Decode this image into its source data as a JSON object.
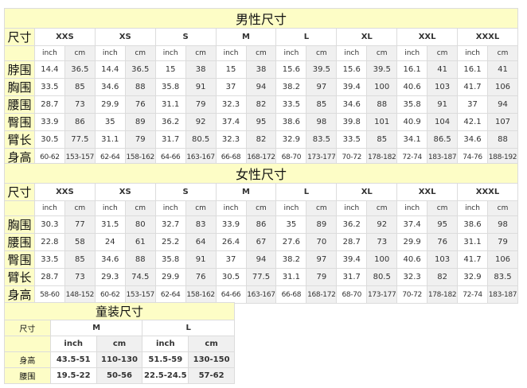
{
  "men": {
    "title": "男性尺寸",
    "size_label": "尺寸",
    "sizes": [
      "XXS",
      "XS",
      "S",
      "M",
      "L",
      "XL",
      "XXL",
      "XXXL"
    ],
    "units": [
      "inch",
      "cm"
    ],
    "rows": [
      {
        "label": "脖围",
        "values": [
          "14.4",
          "36.5",
          "14.4",
          "36.5",
          "15",
          "38",
          "15",
          "38",
          "15.6",
          "39.5",
          "15.6",
          "39.5",
          "16.1",
          "41",
          "16.1",
          "41"
        ]
      },
      {
        "label": "胸围",
        "values": [
          "33.5",
          "85",
          "34.6",
          "88",
          "35.8",
          "91",
          "37",
          "94",
          "38.2",
          "97",
          "39.4",
          "100",
          "40.6",
          "103",
          "41.7",
          "106"
        ]
      },
      {
        "label": "腰围",
        "values": [
          "28.7",
          "73",
          "29.9",
          "76",
          "31.1",
          "79",
          "32.3",
          "82",
          "33.5",
          "85",
          "34.6",
          "88",
          "35.8",
          "91",
          "37",
          "94"
        ]
      },
      {
        "label": "臀围",
        "values": [
          "33.9",
          "86",
          "35",
          "89",
          "36.2",
          "92",
          "37.4",
          "95",
          "38.6",
          "98",
          "39.8",
          "101",
          "40.9",
          "104",
          "42.1",
          "107"
        ]
      },
      {
        "label": "臂长",
        "values": [
          "30.5",
          "77.5",
          "31.1",
          "79",
          "31.7",
          "80.5",
          "32.3",
          "82",
          "32.9",
          "83.5",
          "33.5",
          "85",
          "34.1",
          "86.5",
          "34.6",
          "88"
        ]
      },
      {
        "label": "身高",
        "values": [
          "60-62",
          "153-157",
          "62-64",
          "158-162",
          "64-66",
          "163-167",
          "66-68",
          "168-172",
          "68-70",
          "173-177",
          "70-72",
          "178-182",
          "72-74",
          "183-187",
          "74-76",
          "188-192"
        ]
      }
    ]
  },
  "women": {
    "title": "女性尺寸",
    "size_label": "尺寸",
    "sizes": [
      "XXS",
      "XS",
      "S",
      "M",
      "L",
      "XL",
      "XXL",
      "XXXL"
    ],
    "units": [
      "inch",
      "cm"
    ],
    "rows": [
      {
        "label": "胸围",
        "values": [
          "30.3",
          "77",
          "31.5",
          "80",
          "32.7",
          "83",
          "33.9",
          "86",
          "35",
          "89",
          "36.2",
          "92",
          "37.4",
          "95",
          "38.6",
          "98"
        ]
      },
      {
        "label": "腰围",
        "values": [
          "22.8",
          "58",
          "24",
          "61",
          "25.2",
          "64",
          "26.4",
          "67",
          "27.6",
          "70",
          "28.7",
          "73",
          "29.9",
          "76",
          "31.1",
          "79"
        ]
      },
      {
        "label": "臀围",
        "values": [
          "33.5",
          "85",
          "34.6",
          "88",
          "35.8",
          "91",
          "37",
          "94",
          "38.2",
          "97",
          "39.4",
          "100",
          "40.6",
          "103",
          "41.7",
          "106"
        ]
      },
      {
        "label": "臂长",
        "values": [
          "28.7",
          "73",
          "29.3",
          "74.5",
          "29.9",
          "76",
          "30.5",
          "77.5",
          "31.1",
          "79",
          "31.7",
          "80.5",
          "32.3",
          "82",
          "32.9",
          "83.5"
        ]
      },
      {
        "label": "身高",
        "values": [
          "58-60",
          "148-152",
          "60-62",
          "153-157",
          "62-64",
          "158-162",
          "64-66",
          "163-167",
          "66-68",
          "168-172",
          "68-70",
          "173-177",
          "70-72",
          "178-182",
          "72-74",
          "183-187"
        ]
      }
    ]
  },
  "kids": {
    "title": "童装尺寸",
    "size_label": "尺寸",
    "sizes": [
      "M",
      "L"
    ],
    "units": [
      "inch",
      "cm"
    ],
    "rows": [
      {
        "label": "身高",
        "values": [
          "43.5-51",
          "110-130",
          "51.5-59",
          "130-150"
        ]
      },
      {
        "label": "腰围",
        "values": [
          "19.5-22",
          "50-56",
          "22.5-24.5",
          "57-62"
        ]
      }
    ]
  }
}
